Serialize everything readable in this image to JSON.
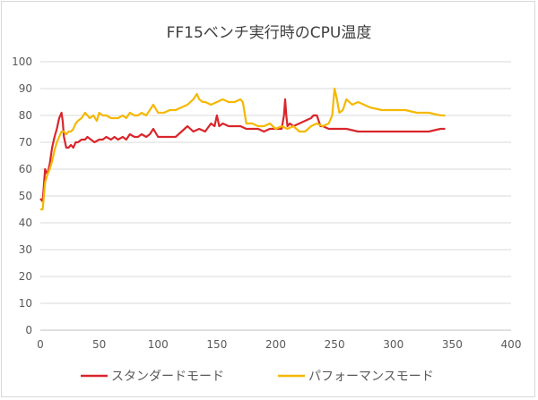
{
  "chart_data": {
    "type": "line",
    "title": "FF15ベンチ実行時のCPU温度",
    "xlabel": "",
    "ylabel": "",
    "xlim": [
      0,
      400
    ],
    "ylim": [
      0,
      100
    ],
    "x_ticks": [
      0,
      50,
      100,
      150,
      200,
      250,
      300,
      350,
      400
    ],
    "y_ticks": [
      0,
      10,
      20,
      30,
      40,
      50,
      60,
      70,
      80,
      90,
      100
    ],
    "grid": "horizontal",
    "legend_position": "bottom",
    "series": [
      {
        "name": "スタンダードモード",
        "color": "#d9262b",
        "x": [
          0,
          2,
          4,
          6,
          8,
          10,
          12,
          14,
          16,
          18,
          19,
          20,
          22,
          24,
          26,
          28,
          30,
          32,
          35,
          38,
          40,
          43,
          46,
          50,
          53,
          56,
          60,
          63,
          66,
          70,
          73,
          76,
          80,
          83,
          86,
          90,
          93,
          96,
          100,
          105,
          110,
          115,
          120,
          125,
          130,
          135,
          140,
          145,
          148,
          150,
          152,
          155,
          160,
          165,
          170,
          175,
          180,
          185,
          190,
          195,
          200,
          205,
          207,
          208,
          209,
          210,
          212,
          215,
          220,
          225,
          230,
          232,
          235,
          238,
          240,
          245,
          250,
          260,
          270,
          280,
          290,
          300,
          310,
          320,
          330,
          340,
          344
        ],
        "values": [
          49,
          48,
          60,
          58,
          62,
          68,
          72,
          75,
          79,
          81,
          78,
          72,
          68,
          68,
          69,
          68,
          70,
          70,
          71,
          71,
          72,
          71,
          70,
          71,
          71,
          72,
          71,
          72,
          71,
          72,
          71,
          73,
          72,
          72,
          73,
          72,
          73,
          75,
          72,
          72,
          72,
          72,
          74,
          76,
          74,
          75,
          74,
          77,
          76,
          80,
          76,
          77,
          76,
          76,
          76,
          75,
          75,
          75,
          74,
          75,
          75,
          75,
          80,
          86,
          80,
          76,
          77,
          76,
          77,
          78,
          79,
          80,
          80,
          76,
          76,
          75,
          75,
          75,
          74,
          74,
          74,
          74,
          74,
          74,
          74,
          75,
          75
        ]
      },
      {
        "name": "パフォーマンスモード",
        "color": "#f5b800",
        "x": [
          0,
          2,
          4,
          6,
          8,
          10,
          12,
          14,
          16,
          18,
          20,
          22,
          24,
          26,
          28,
          30,
          32,
          35,
          38,
          40,
          42,
          45,
          48,
          50,
          53,
          56,
          60,
          63,
          66,
          70,
          73,
          76,
          80,
          83,
          86,
          90,
          93,
          96,
          100,
          105,
          110,
          115,
          120,
          125,
          130,
          133,
          135,
          138,
          140,
          145,
          150,
          155,
          160,
          165,
          170,
          172,
          175,
          180,
          185,
          190,
          195,
          200,
          205,
          210,
          215,
          220,
          225,
          230,
          235,
          240,
          245,
          248,
          250,
          252,
          254,
          257,
          260,
          265,
          270,
          275,
          280,
          290,
          300,
          310,
          320,
          330,
          340,
          344
        ],
        "values": [
          45,
          45,
          55,
          58,
          60,
          63,
          67,
          70,
          72,
          74,
          74,
          73,
          74,
          74,
          75,
          77,
          78,
          79,
          81,
          80,
          79,
          80,
          78,
          81,
          80,
          80,
          79,
          79,
          79,
          80,
          79,
          81,
          80,
          80,
          81,
          80,
          82,
          84,
          81,
          81,
          82,
          82,
          83,
          84,
          86,
          88,
          86,
          85,
          85,
          84,
          85,
          86,
          85,
          85,
          86,
          85,
          77,
          77,
          76,
          76,
          77,
          75,
          76,
          75,
          76,
          74,
          74,
          76,
          77,
          76,
          77,
          80,
          90,
          86,
          81,
          82,
          86,
          84,
          85,
          84,
          83,
          82,
          82,
          82,
          81,
          81,
          80,
          80
        ]
      }
    ]
  }
}
